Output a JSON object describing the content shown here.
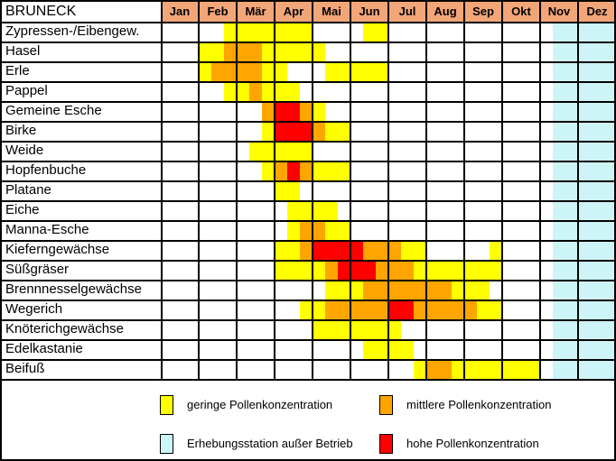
{
  "chart_data": {
    "type": "heatmap",
    "title": "BRUNECK",
    "months": [
      "Jan",
      "Feb",
      "Mär",
      "Apr",
      "Mai",
      "Jun",
      "Jul",
      "Aug",
      "Sep",
      "Okt",
      "Nov",
      "Dez"
    ],
    "cells_per_month": 3,
    "cell_unit": "one third of a month, index 0-35 (Jan=0-2 ... Dez=33-35)",
    "levels": {
      "low": {
        "label": "geringe Pollenkonzentration",
        "color": "#FFFF00"
      },
      "mid": {
        "label": "mittlere Pollenkonzentration",
        "color": "#FFA500"
      },
      "high": {
        "label": "hohe Pollenkonzentration",
        "color": "#FF0000"
      },
      "off": {
        "label": "Erhebungsstation außer Betrieb",
        "color": "#CDF4F6"
      }
    },
    "header_bg": "#F2A678",
    "grid_color": "#000000",
    "station_off": {
      "start": 31,
      "end": 36,
      "level": "off"
    },
    "rows": [
      {
        "name": "Zypressen-/Eibengew.",
        "segments": [
          [
            5,
            12,
            "low"
          ],
          [
            16,
            18,
            "low"
          ]
        ]
      },
      {
        "name": "Hasel",
        "segments": [
          [
            3,
            5,
            "low"
          ],
          [
            5,
            8,
            "mid"
          ],
          [
            8,
            13,
            "low"
          ]
        ]
      },
      {
        "name": "Erle",
        "segments": [
          [
            3,
            4,
            "low"
          ],
          [
            4,
            8,
            "mid"
          ],
          [
            8,
            10,
            "low"
          ],
          [
            13,
            18,
            "low"
          ]
        ]
      },
      {
        "name": "Pappel",
        "segments": [
          [
            5,
            7,
            "low"
          ],
          [
            7,
            8,
            "mid"
          ],
          [
            8,
            11,
            "low"
          ]
        ]
      },
      {
        "name": "Gemeine Esche",
        "segments": [
          [
            8,
            9,
            "mid"
          ],
          [
            9,
            11,
            "high"
          ],
          [
            11,
            12,
            "mid"
          ],
          [
            12,
            13,
            "low"
          ]
        ]
      },
      {
        "name": "Birke",
        "segments": [
          [
            8,
            9,
            "low"
          ],
          [
            9,
            12,
            "high"
          ],
          [
            12,
            13,
            "mid"
          ],
          [
            13,
            15,
            "low"
          ]
        ]
      },
      {
        "name": "Weide",
        "segments": [
          [
            7,
            12,
            "low"
          ]
        ]
      },
      {
        "name": "Hopfenbuche",
        "segments": [
          [
            8,
            9,
            "low"
          ],
          [
            9,
            10,
            "mid"
          ],
          [
            10,
            11,
            "high"
          ],
          [
            11,
            12,
            "mid"
          ],
          [
            12,
            15,
            "low"
          ]
        ]
      },
      {
        "name": "Platane",
        "segments": [
          [
            9,
            11,
            "low"
          ]
        ]
      },
      {
        "name": "Eiche",
        "segments": [
          [
            10,
            14,
            "low"
          ]
        ]
      },
      {
        "name": "Manna-Esche",
        "segments": [
          [
            10,
            11,
            "low"
          ],
          [
            11,
            13,
            "mid"
          ],
          [
            13,
            15,
            "low"
          ]
        ]
      },
      {
        "name": "Kieferngewächse",
        "segments": [
          [
            9,
            11,
            "low"
          ],
          [
            11,
            12,
            "mid"
          ],
          [
            12,
            16,
            "high"
          ],
          [
            16,
            19,
            "mid"
          ],
          [
            19,
            21,
            "low"
          ],
          [
            26,
            27,
            "low"
          ]
        ]
      },
      {
        "name": "Süßgräser",
        "segments": [
          [
            9,
            13,
            "low"
          ],
          [
            13,
            14,
            "mid"
          ],
          [
            14,
            17,
            "high"
          ],
          [
            17,
            20,
            "mid"
          ],
          [
            20,
            27,
            "low"
          ]
        ]
      },
      {
        "name": "Brennnesselgewächse",
        "segments": [
          [
            13,
            16,
            "low"
          ],
          [
            16,
            23,
            "mid"
          ],
          [
            23,
            26,
            "low"
          ]
        ]
      },
      {
        "name": "Wegerich",
        "segments": [
          [
            11,
            13,
            "low"
          ],
          [
            13,
            18,
            "mid"
          ],
          [
            18,
            20,
            "high"
          ],
          [
            20,
            25,
            "mid"
          ],
          [
            25,
            27,
            "low"
          ]
        ]
      },
      {
        "name": "Knöterichgewächse",
        "segments": [
          [
            12,
            19,
            "low"
          ]
        ]
      },
      {
        "name": "Edelkastanie",
        "segments": [
          [
            16,
            20,
            "low"
          ]
        ]
      },
      {
        "name": "Beifuß",
        "segments": [
          [
            20,
            21,
            "low"
          ],
          [
            21,
            23,
            "mid"
          ],
          [
            23,
            30,
            "low"
          ]
        ]
      }
    ],
    "legend": [
      {
        "level": "low",
        "label": "geringe Pollenkonzentration"
      },
      {
        "level": "mid",
        "label": "mittlere Pollenkonzentration"
      },
      {
        "level": "off",
        "label": "Erhebungsstation außer Betrieb"
      },
      {
        "level": "high",
        "label": "hohe Pollenkonzentration"
      }
    ]
  }
}
